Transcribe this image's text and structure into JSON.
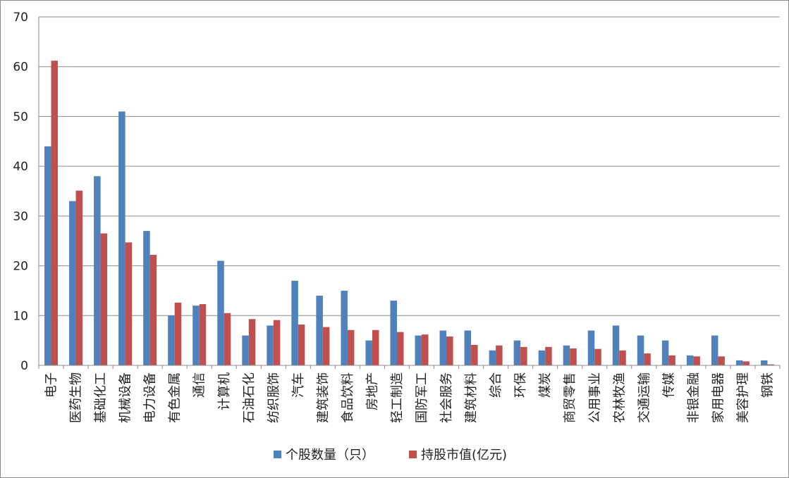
{
  "chart_data": {
    "type": "bar",
    "categories": [
      "电子",
      "医药生物",
      "基础化工",
      "机械设备",
      "电力设备",
      "有色金属",
      "通信",
      "计算机",
      "石油石化",
      "纺织服饰",
      "汽车",
      "建筑装饰",
      "食品饮料",
      "房地产",
      "轻工制造",
      "国防军工",
      "社会服务",
      "建筑材料",
      "综合",
      "环保",
      "煤炭",
      "商贸零售",
      "公用事业",
      "农林牧渔",
      "交通运输",
      "传媒",
      "非银金融",
      "家用电器",
      "美容护理",
      "钢铁"
    ],
    "series": [
      {
        "name": "个股数量（只）",
        "color": "#4f81bd",
        "values": [
          44,
          33,
          38,
          51,
          27,
          10,
          12,
          21,
          6,
          8,
          17,
          14,
          15,
          5,
          13,
          6,
          7,
          7,
          3,
          5,
          3,
          4,
          7,
          8,
          6,
          5,
          2,
          6,
          1,
          1
        ]
      },
      {
        "name": "持股市值(亿元)",
        "color": "#c0504d",
        "values": [
          61.2,
          35.1,
          26.5,
          24.7,
          22.2,
          12.6,
          12.3,
          10.5,
          9.3,
          9.1,
          8.2,
          7.7,
          7.1,
          7.1,
          6.7,
          6.2,
          5.8,
          4.1,
          4.0,
          3.7,
          3.7,
          3.4,
          3.3,
          3.0,
          2.4,
          2.0,
          1.8,
          1.8,
          0.8,
          0.2
        ]
      }
    ],
    "ylim": [
      0,
      70
    ],
    "yticks": [
      0,
      10,
      20,
      30,
      40,
      50,
      60,
      70
    ],
    "grid": true,
    "legend": "bottom"
  }
}
